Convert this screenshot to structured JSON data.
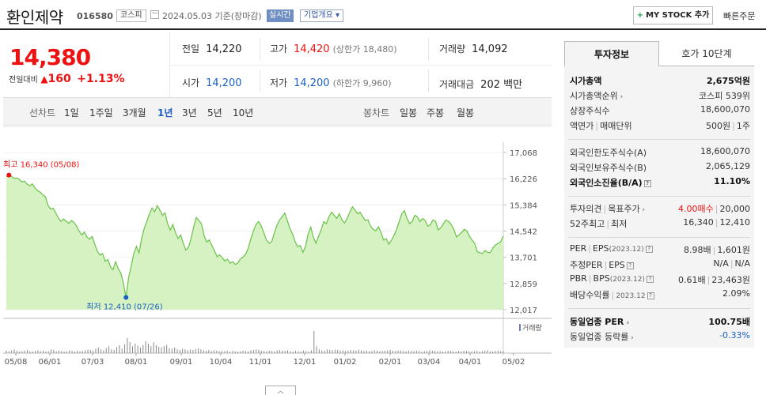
{
  "header": {
    "name": "환인제약",
    "code": "016580",
    "market": "코스피",
    "date": "2024.05.03 기준(장마감)",
    "live": "실시간",
    "overview": "기업개요 ▾",
    "mystock": "MY STOCK 추가",
    "mystock_plus": "+",
    "quick_order": "빠른주문"
  },
  "price": {
    "current": "14,380",
    "change_label": "전일대비",
    "change_arrow": "▲",
    "change": "160",
    "change_pct": "+1.13%"
  },
  "stats": {
    "prev_label": "전일",
    "prev": "14,220",
    "high_label": "고가",
    "high": "14,420",
    "upper_limit": "(상한가 18,480)",
    "volume_label": "거래량",
    "volume": "14,092",
    "open_label": "시가",
    "open": "14,200",
    "low_label": "저가",
    "low": "14,200",
    "lower_limit": "(하한가 9,960)",
    "amount_label": "거래대금",
    "amount": "202 백만"
  },
  "periods": {
    "line_label": "선차트",
    "items": [
      "1일",
      "1주일",
      "3개월",
      "1년",
      "3년",
      "5년",
      "10년"
    ],
    "active_index": 3,
    "candle_label": "봉차트",
    "candles": [
      "일봉",
      "주봉",
      "월봉"
    ]
  },
  "chart_data": {
    "type": "area",
    "y_ticks": [
      "17,068",
      "16,226",
      "15,384",
      "14,542",
      "13,701",
      "12,859",
      "12,017"
    ],
    "ylim": [
      12017,
      17068
    ],
    "x_labels": [
      "05/08",
      "06/01",
      "07/03",
      "08/01",
      "09/01",
      "10/04",
      "11/01",
      "12/01",
      "01/02",
      "02/01",
      "03/04",
      "04/01",
      "05/02"
    ],
    "max_label": "최고 16,340 (05/08)",
    "min_label": "최저 12,410 (07/26)",
    "max_value": 16340,
    "min_value": 12410,
    "volume_legend": "거래량",
    "series": [
      {
        "values": [
          16290,
          16340,
          16300,
          16230,
          16250,
          16200,
          16120,
          16150,
          16050,
          16000,
          16060,
          15930,
          15840,
          15800,
          15710,
          15650,
          15370,
          15250,
          15280,
          15130,
          14960,
          14850,
          14930,
          14860,
          14790,
          14880,
          14820,
          14700,
          14540,
          14420,
          14510,
          14350,
          14280,
          14370,
          14120,
          13890,
          13770,
          13820,
          13570,
          13630,
          13400,
          13300,
          13560,
          13330,
          13200,
          12860,
          12410,
          13050,
          13420,
          13820,
          14050,
          13840,
          14300,
          14630,
          14850,
          15100,
          15280,
          15160,
          15360,
          15220,
          15050,
          15130,
          14780,
          14580,
          14750,
          14500,
          14300,
          14420,
          14150,
          13930,
          14020,
          14300,
          14680,
          14980,
          14880,
          14780,
          14400,
          14190,
          14260,
          14080,
          13910,
          13720,
          13780,
          13680,
          13580,
          13640,
          13510,
          13560,
          13470,
          13520,
          13650,
          13710,
          13800,
          14000,
          14300,
          14550,
          14760,
          14850,
          14700,
          14480,
          14250,
          14150,
          14200,
          14480,
          14720,
          14900,
          15000,
          15120,
          14880,
          14620,
          14450,
          14200,
          14040,
          14080,
          13860,
          14050,
          14450,
          14670,
          14350,
          14150,
          14380,
          14580,
          14850,
          14780,
          15000,
          15150,
          15050,
          14950,
          15100,
          14900,
          14800,
          14950,
          15150,
          15320,
          15220,
          15100,
          15150,
          15000,
          14880,
          14900,
          14700,
          14600,
          14550,
          14680,
          14500,
          14250,
          14300,
          14120,
          14250,
          14400,
          14600,
          14850,
          15100,
          15200,
          14950,
          14780,
          14850,
          15050,
          15000,
          14850,
          14950,
          14880,
          14700,
          14750,
          14900,
          14850,
          14580,
          14650,
          14780,
          14900,
          14850,
          14750,
          14600,
          14350,
          14420,
          14500,
          14600,
          14550,
          14380,
          14250,
          14150,
          13880,
          13850,
          13820,
          13920,
          13860,
          13850,
          14000,
          14100,
          14150,
          14200,
          14380
        ]
      }
    ],
    "volume": [
      8,
      6,
      9,
      12,
      7,
      5,
      6,
      8,
      10,
      6,
      5,
      7,
      9,
      6,
      8,
      5,
      7,
      12,
      10,
      6,
      8,
      7,
      5,
      6,
      9,
      7,
      5,
      8,
      6,
      7,
      9,
      11,
      10,
      8,
      14,
      18,
      12,
      9,
      16,
      22,
      12,
      10,
      19,
      25,
      14,
      28,
      48,
      35,
      22,
      30,
      24,
      18,
      26,
      38,
      30,
      22,
      34,
      25,
      20,
      18,
      22,
      26,
      16,
      14,
      18,
      12,
      10,
      14,
      12,
      9,
      11,
      10,
      13,
      15,
      12,
      9,
      8,
      10,
      7,
      9,
      8,
      6,
      7,
      6,
      8,
      5,
      7,
      6,
      5,
      6,
      8,
      7,
      6,
      9,
      10,
      12,
      11,
      8,
      7,
      6,
      8,
      7,
      6,
      9,
      10,
      8,
      7,
      9,
      6,
      5,
      7,
      6,
      5,
      8,
      7,
      6,
      9,
      70,
      22,
      12,
      9,
      8,
      12,
      10,
      9,
      11,
      10,
      8,
      9,
      7,
      8,
      10,
      9,
      8,
      11,
      9,
      7,
      8,
      6,
      7,
      9,
      8,
      6,
      7,
      8,
      9,
      10,
      8,
      7,
      9,
      8,
      7,
      6,
      8,
      7,
      6,
      8,
      7,
      5,
      6,
      7,
      9,
      8,
      7,
      6,
      7,
      5,
      6,
      8,
      7,
      6,
      5,
      7,
      6,
      8,
      7,
      6,
      5,
      6,
      7,
      5,
      6,
      7,
      9,
      6,
      5,
      7,
      8,
      6,
      7
    ]
  },
  "right_panel": {
    "tab_active": "투자정보",
    "tab_other": "호가 10단계",
    "market_cap_label": "시가총액",
    "market_cap": "2,675억원",
    "rank_label": "시가총액순위",
    "rank": "코스피 539위",
    "shares_label": "상장주식수",
    "shares": "18,600,070",
    "par_label": "액면가",
    "unit_label": "매매단위",
    "par": "500원",
    "unit": "1주",
    "foreign_limit_label": "외국인한도주식수(A)",
    "foreign_limit": "18,600,070",
    "foreign_hold_label": "외국인보유주식수(B)",
    "foreign_hold": "2,065,129",
    "foreign_rate_label": "외국인소진율(B/A)",
    "foreign_rate": "11.10%",
    "opinion_label": "투자의견",
    "target_label": "목표주가",
    "opinion": "4.00매수",
    "target": "20,000",
    "wk52_label": "52주최고",
    "wk52_low_label": "최저",
    "wk52_high": "16,340",
    "wk52_low": "12,410",
    "per_label": "PER",
    "eps_label": "EPS",
    "eps_year": "(2023.12)",
    "per": "8.98배",
    "eps": "1,601원",
    "est_per_label": "추정PER",
    "est_eps_label": "EPS",
    "est_per": "N/A",
    "est_eps": "N/A",
    "pbr_label": "PBR",
    "bps_label": "BPS",
    "bps_year": "(2023.12)",
    "pbr": "0.61배",
    "bps": "23,463원",
    "div_label": "배당수익률",
    "div_year": "2023.12",
    "div": "2.09%",
    "sector_per_label": "동일업종 PER",
    "sector_per": "100.75배",
    "sector_chg_label": "동일업종 등락률",
    "sector_chg": "-0.33%"
  }
}
